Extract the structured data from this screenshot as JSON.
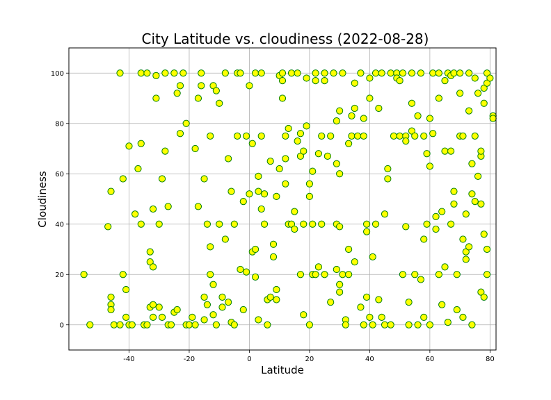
{
  "chart_data": {
    "type": "scatter",
    "title": "City Latitude vs. cloudiness (2022-08-28)",
    "xlabel": "Latitude",
    "ylabel": "Cloudiness",
    "xlim": [
      -60,
      82
    ],
    "ylim": [
      -10,
      110
    ],
    "xticks": [
      -40,
      -20,
      0,
      20,
      40,
      60,
      80
    ],
    "yticks": [
      0,
      20,
      40,
      60,
      80,
      100
    ],
    "grid": true,
    "marker_fill": "#ffff00",
    "marker_edge": "#008000",
    "series": [
      {
        "points": [
          [
            -55,
            20
          ],
          [
            -53,
            0
          ],
          [
            -47,
            39
          ],
          [
            -46,
            53
          ],
          [
            -46,
            11
          ],
          [
            -46,
            8
          ],
          [
            -46,
            6
          ],
          [
            -45,
            0
          ],
          [
            -43,
            100
          ],
          [
            -43,
            0
          ],
          [
            -42,
            58
          ],
          [
            -42,
            20
          ],
          [
            -41,
            3
          ],
          [
            -41,
            14
          ],
          [
            -40,
            71
          ],
          [
            -40,
            0
          ],
          [
            -39,
            0
          ],
          [
            -38,
            44
          ],
          [
            -37,
            62
          ],
          [
            -36,
            100
          ],
          [
            -36,
            72
          ],
          [
            -36,
            40
          ],
          [
            -35,
            0
          ],
          [
            -34,
            0
          ],
          [
            -34,
            100
          ],
          [
            -33,
            7
          ],
          [
            -33,
            25
          ],
          [
            -33,
            29
          ],
          [
            -32,
            46
          ],
          [
            -32,
            23
          ],
          [
            -32,
            8
          ],
          [
            -32,
            3
          ],
          [
            -31,
            99
          ],
          [
            -31,
            90
          ],
          [
            -30,
            40
          ],
          [
            -30,
            7
          ],
          [
            -29,
            58
          ],
          [
            -29,
            3
          ],
          [
            -28,
            100
          ],
          [
            -28,
            69
          ],
          [
            -27,
            47
          ],
          [
            -27,
            0
          ],
          [
            -26,
            0
          ],
          [
            -25,
            100
          ],
          [
            -25,
            5
          ],
          [
            -24,
            92
          ],
          [
            -24,
            6
          ],
          [
            -23,
            95
          ],
          [
            -23,
            76
          ],
          [
            -22,
            100
          ],
          [
            -21,
            80
          ],
          [
            -21,
            0
          ],
          [
            -20,
            0
          ],
          [
            -19,
            3
          ],
          [
            -18,
            70
          ],
          [
            -18,
            0
          ],
          [
            -17,
            47
          ],
          [
            -17,
            90
          ],
          [
            -16,
            95
          ],
          [
            -16,
            100
          ],
          [
            -15,
            11
          ],
          [
            -15,
            58
          ],
          [
            -15,
            2
          ],
          [
            -14,
            40
          ],
          [
            -14,
            8
          ],
          [
            -13,
            20
          ],
          [
            -13,
            31
          ],
          [
            -13,
            75
          ],
          [
            -12,
            95
          ],
          [
            -12,
            16
          ],
          [
            -12,
            4
          ],
          [
            -11,
            93
          ],
          [
            -11,
            0
          ],
          [
            -10,
            88
          ],
          [
            -10,
            40
          ],
          [
            -9,
            11
          ],
          [
            -9,
            7
          ],
          [
            -8,
            100
          ],
          [
            -8,
            34
          ],
          [
            -7,
            66
          ],
          [
            -7,
            9
          ],
          [
            -6,
            53
          ],
          [
            -6,
            1
          ],
          [
            -5,
            40
          ],
          [
            -5,
            0
          ],
          [
            -4,
            100
          ],
          [
            -4,
            75
          ],
          [
            -3,
            22
          ],
          [
            -3,
            100
          ],
          [
            -2,
            6
          ],
          [
            -2,
            49
          ],
          [
            -1,
            75
          ],
          [
            -1,
            21
          ],
          [
            0,
            95
          ],
          [
            0,
            52
          ],
          [
            1,
            72
          ],
          [
            1,
            29
          ],
          [
            2,
            100
          ],
          [
            2,
            30
          ],
          [
            2,
            19
          ],
          [
            3,
            59
          ],
          [
            3,
            53
          ],
          [
            3,
            2
          ],
          [
            4,
            100
          ],
          [
            4,
            75
          ],
          [
            4,
            46
          ],
          [
            5,
            52
          ],
          [
            5,
            40
          ],
          [
            6,
            10
          ],
          [
            6,
            0
          ],
          [
            7,
            11
          ],
          [
            7,
            65
          ],
          [
            8,
            32
          ],
          [
            8,
            27
          ],
          [
            9,
            51
          ],
          [
            9,
            14
          ],
          [
            9,
            10
          ],
          [
            10,
            99
          ],
          [
            10,
            62
          ],
          [
            11,
            100
          ],
          [
            11,
            97
          ],
          [
            11,
            90
          ],
          [
            12,
            75
          ],
          [
            12,
            66
          ],
          [
            12,
            56
          ],
          [
            13,
            40
          ],
          [
            13,
            78
          ],
          [
            14,
            100
          ],
          [
            14,
            40
          ],
          [
            15,
            45
          ],
          [
            15,
            38
          ],
          [
            16,
            100
          ],
          [
            16,
            73
          ],
          [
            17,
            76
          ],
          [
            17,
            67
          ],
          [
            17,
            20
          ],
          [
            18,
            69
          ],
          [
            18,
            40
          ],
          [
            18,
            4
          ],
          [
            19,
            98
          ],
          [
            19,
            79
          ],
          [
            20,
            56
          ],
          [
            20,
            51
          ],
          [
            20,
            0
          ],
          [
            21,
            61
          ],
          [
            21,
            40
          ],
          [
            21,
            20
          ],
          [
            22,
            100
          ],
          [
            22,
            97
          ],
          [
            22,
            20
          ],
          [
            23,
            68
          ],
          [
            23,
            23
          ],
          [
            24,
            75
          ],
          [
            24,
            40
          ],
          [
            25,
            100
          ],
          [
            25,
            97
          ],
          [
            25,
            20
          ],
          [
            26,
            67
          ],
          [
            27,
            75
          ],
          [
            27,
            9
          ],
          [
            28,
            100
          ],
          [
            29,
            40
          ],
          [
            29,
            81
          ],
          [
            29,
            22
          ],
          [
            29,
            64
          ],
          [
            30,
            85
          ],
          [
            30,
            39
          ],
          [
            30,
            60
          ],
          [
            30,
            16
          ],
          [
            30,
            13
          ],
          [
            31,
            100
          ],
          [
            31,
            20
          ],
          [
            32,
            2
          ],
          [
            32,
            0
          ],
          [
            33,
            30
          ],
          [
            33,
            72
          ],
          [
            33,
            20
          ],
          [
            34,
            83
          ],
          [
            34,
            75
          ],
          [
            35,
            86
          ],
          [
            35,
            96
          ],
          [
            35,
            25
          ],
          [
            36,
            75
          ],
          [
            37,
            100
          ],
          [
            37,
            7
          ],
          [
            38,
            82
          ],
          [
            38,
            75
          ],
          [
            38,
            0
          ],
          [
            39,
            40
          ],
          [
            39,
            11
          ],
          [
            39,
            37
          ],
          [
            40,
            90
          ],
          [
            40,
            98
          ],
          [
            40,
            3
          ],
          [
            41,
            27
          ],
          [
            41,
            0
          ],
          [
            42,
            100
          ],
          [
            42,
            40
          ],
          [
            43,
            10
          ],
          [
            43,
            86
          ],
          [
            44,
            100
          ],
          [
            44,
            3
          ],
          [
            45,
            44
          ],
          [
            45,
            0
          ],
          [
            46,
            62
          ],
          [
            46,
            58
          ],
          [
            47,
            100
          ],
          [
            47,
            0
          ],
          [
            48,
            75
          ],
          [
            49,
            100
          ],
          [
            49,
            98
          ],
          [
            50,
            97
          ],
          [
            50,
            75
          ],
          [
            51,
            100
          ],
          [
            51,
            20
          ],
          [
            52,
            75
          ],
          [
            52,
            73
          ],
          [
            52,
            39
          ],
          [
            53,
            0
          ],
          [
            53,
            9
          ],
          [
            54,
            100
          ],
          [
            54,
            88
          ],
          [
            54,
            77
          ],
          [
            55,
            75
          ],
          [
            55,
            20
          ],
          [
            56,
            83
          ],
          [
            56,
            0
          ],
          [
            57,
            18
          ],
          [
            57,
            100
          ],
          [
            58,
            75
          ],
          [
            58,
            34
          ],
          [
            58,
            3
          ],
          [
            59,
            68
          ],
          [
            59,
            40
          ],
          [
            60,
            82
          ],
          [
            60,
            63
          ],
          [
            60,
            0
          ],
          [
            61,
            100
          ],
          [
            61,
            76
          ],
          [
            62,
            43
          ],
          [
            62,
            38
          ],
          [
            63,
            100
          ],
          [
            63,
            90
          ],
          [
            63,
            20
          ],
          [
            64,
            45
          ],
          [
            64,
            8
          ],
          [
            65,
            97
          ],
          [
            65,
            69
          ],
          [
            65,
            23
          ],
          [
            66,
            100
          ],
          [
            66,
            1
          ],
          [
            67,
            99
          ],
          [
            67,
            69
          ],
          [
            67,
            40
          ],
          [
            68,
            100
          ],
          [
            68,
            48
          ],
          [
            68,
            53
          ],
          [
            69,
            6
          ],
          [
            69,
            20
          ],
          [
            70,
            100
          ],
          [
            70,
            92
          ],
          [
            70,
            75
          ],
          [
            71,
            34
          ],
          [
            71,
            75
          ],
          [
            71,
            3
          ],
          [
            72,
            26
          ],
          [
            72,
            44
          ],
          [
            72,
            29
          ],
          [
            73,
            100
          ],
          [
            73,
            85
          ],
          [
            73,
            31
          ],
          [
            74,
            0
          ],
          [
            74,
            52
          ],
          [
            74,
            64
          ],
          [
            75,
            98
          ],
          [
            75,
            49
          ],
          [
            75,
            75
          ],
          [
            76,
            92
          ],
          [
            76,
            59
          ],
          [
            77,
            67
          ],
          [
            77,
            48
          ],
          [
            77,
            13
          ],
          [
            78,
            88
          ],
          [
            78,
            94
          ],
          [
            78,
            36
          ],
          [
            78,
            11
          ],
          [
            79,
            20
          ],
          [
            79,
            96
          ],
          [
            79,
            30
          ],
          [
            79,
            100
          ],
          [
            80,
            98
          ],
          [
            81,
            83
          ],
          [
            81,
            82
          ],
          [
            77,
            69
          ]
        ]
      }
    ]
  }
}
